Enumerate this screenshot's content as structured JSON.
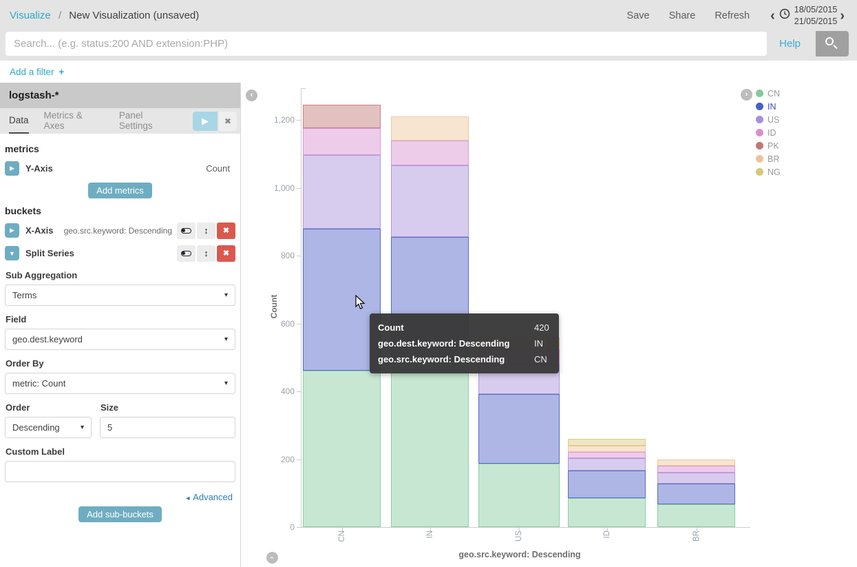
{
  "topbar": {
    "breadcrumb": {
      "section": "Visualize",
      "separator": "/",
      "page": "New Visualization (unsaved)"
    },
    "actions": [
      "Save",
      "Share",
      "Refresh"
    ],
    "time_range": {
      "from": "18/05/2015",
      "to": "21/05/2015"
    }
  },
  "searchbar": {
    "placeholder": "Search... (e.g. status:200 AND extension:PHP)",
    "help_label": "Help"
  },
  "filterbar": {
    "label": "Add a filter",
    "plus": "+"
  },
  "sidebar": {
    "index_pattern": "logstash-*",
    "tabs": [
      {
        "label": "Data",
        "active": true
      },
      {
        "label": "Metrics & Axes",
        "active": false
      },
      {
        "label": "Panel Settings",
        "active": false
      }
    ],
    "metrics": {
      "heading": "metrics",
      "y_axis_label": "Y-Axis",
      "y_axis_value": "Count",
      "add_button": "Add metrics"
    },
    "buckets": {
      "heading": "buckets",
      "x_axis_label": "X-Axis",
      "x_axis_value": "geo.src.keyword: Descending",
      "split_series_label": "Split Series",
      "sub_aggregation": {
        "label": "Sub Aggregation",
        "value": "Terms"
      },
      "field": {
        "label": "Field",
        "value": "geo.dest.keyword"
      },
      "order_by": {
        "label": "Order By",
        "value": "metric: Count"
      },
      "order": {
        "label": "Order",
        "value": "Descending"
      },
      "size": {
        "label": "Size",
        "value": "5"
      },
      "custom_label": {
        "label": "Custom Label",
        "value": ""
      },
      "advanced_label": "Advanced",
      "add_button": "Add sub-buckets"
    }
  },
  "chart_data": {
    "type": "bar",
    "stacked": true,
    "title": "",
    "xlabel": "geo.src.keyword: Descending",
    "ylabel": "Count",
    "categories": [
      "CN",
      "IN",
      "US",
      "ID",
      "BR"
    ],
    "series": [
      {
        "name": "CN",
        "color": "#82c99e",
        "values": [
          460,
          490,
          187,
          86,
          66
        ]
      },
      {
        "name": "IN",
        "color": "#4a5ec4",
        "values": [
          420,
          365,
          205,
          81,
          61
        ]
      },
      {
        "name": "US",
        "color": "#a78fd8",
        "values": [
          217,
          210,
          88,
          37,
          34
        ]
      },
      {
        "name": "ID",
        "color": "#d78fd0",
        "values": [
          78,
          75,
          44,
          17,
          19
        ]
      },
      {
        "name": "PK",
        "color": "#c27676",
        "values": [
          69,
          0,
          0,
          0,
          0
        ]
      },
      {
        "name": "BR",
        "color": "#eec39a",
        "values": [
          0,
          71,
          34,
          19,
          18
        ]
      },
      {
        "name": "NG",
        "color": "#d5c878",
        "values": [
          0,
          0,
          0,
          19,
          0
        ]
      }
    ],
    "ylim": [
      0,
      1300
    ],
    "yticks": [
      0,
      200,
      400,
      600,
      800,
      1000,
      1200
    ],
    "legend_position": "right",
    "grid": false
  },
  "legend": {
    "highlighted": "IN"
  },
  "tooltip": {
    "rows": [
      {
        "label": "Count",
        "value": "420"
      },
      {
        "label": "geo.dest.keyword: Descending",
        "value": "IN"
      },
      {
        "label": "geo.src.keyword: Descending",
        "value": "CN"
      }
    ]
  },
  "icons": {
    "time_back": "‹",
    "time_forward": "›",
    "panel_collapse": "‹",
    "legend_expand": "›",
    "bottom_collapse": "›",
    "play": "▶",
    "close": "✖",
    "remove": "✖",
    "move_vertical": "↕",
    "expand_right": "▶",
    "expand_down": "▼",
    "advanced_arrow": "◄",
    "select_caret": "▾"
  }
}
